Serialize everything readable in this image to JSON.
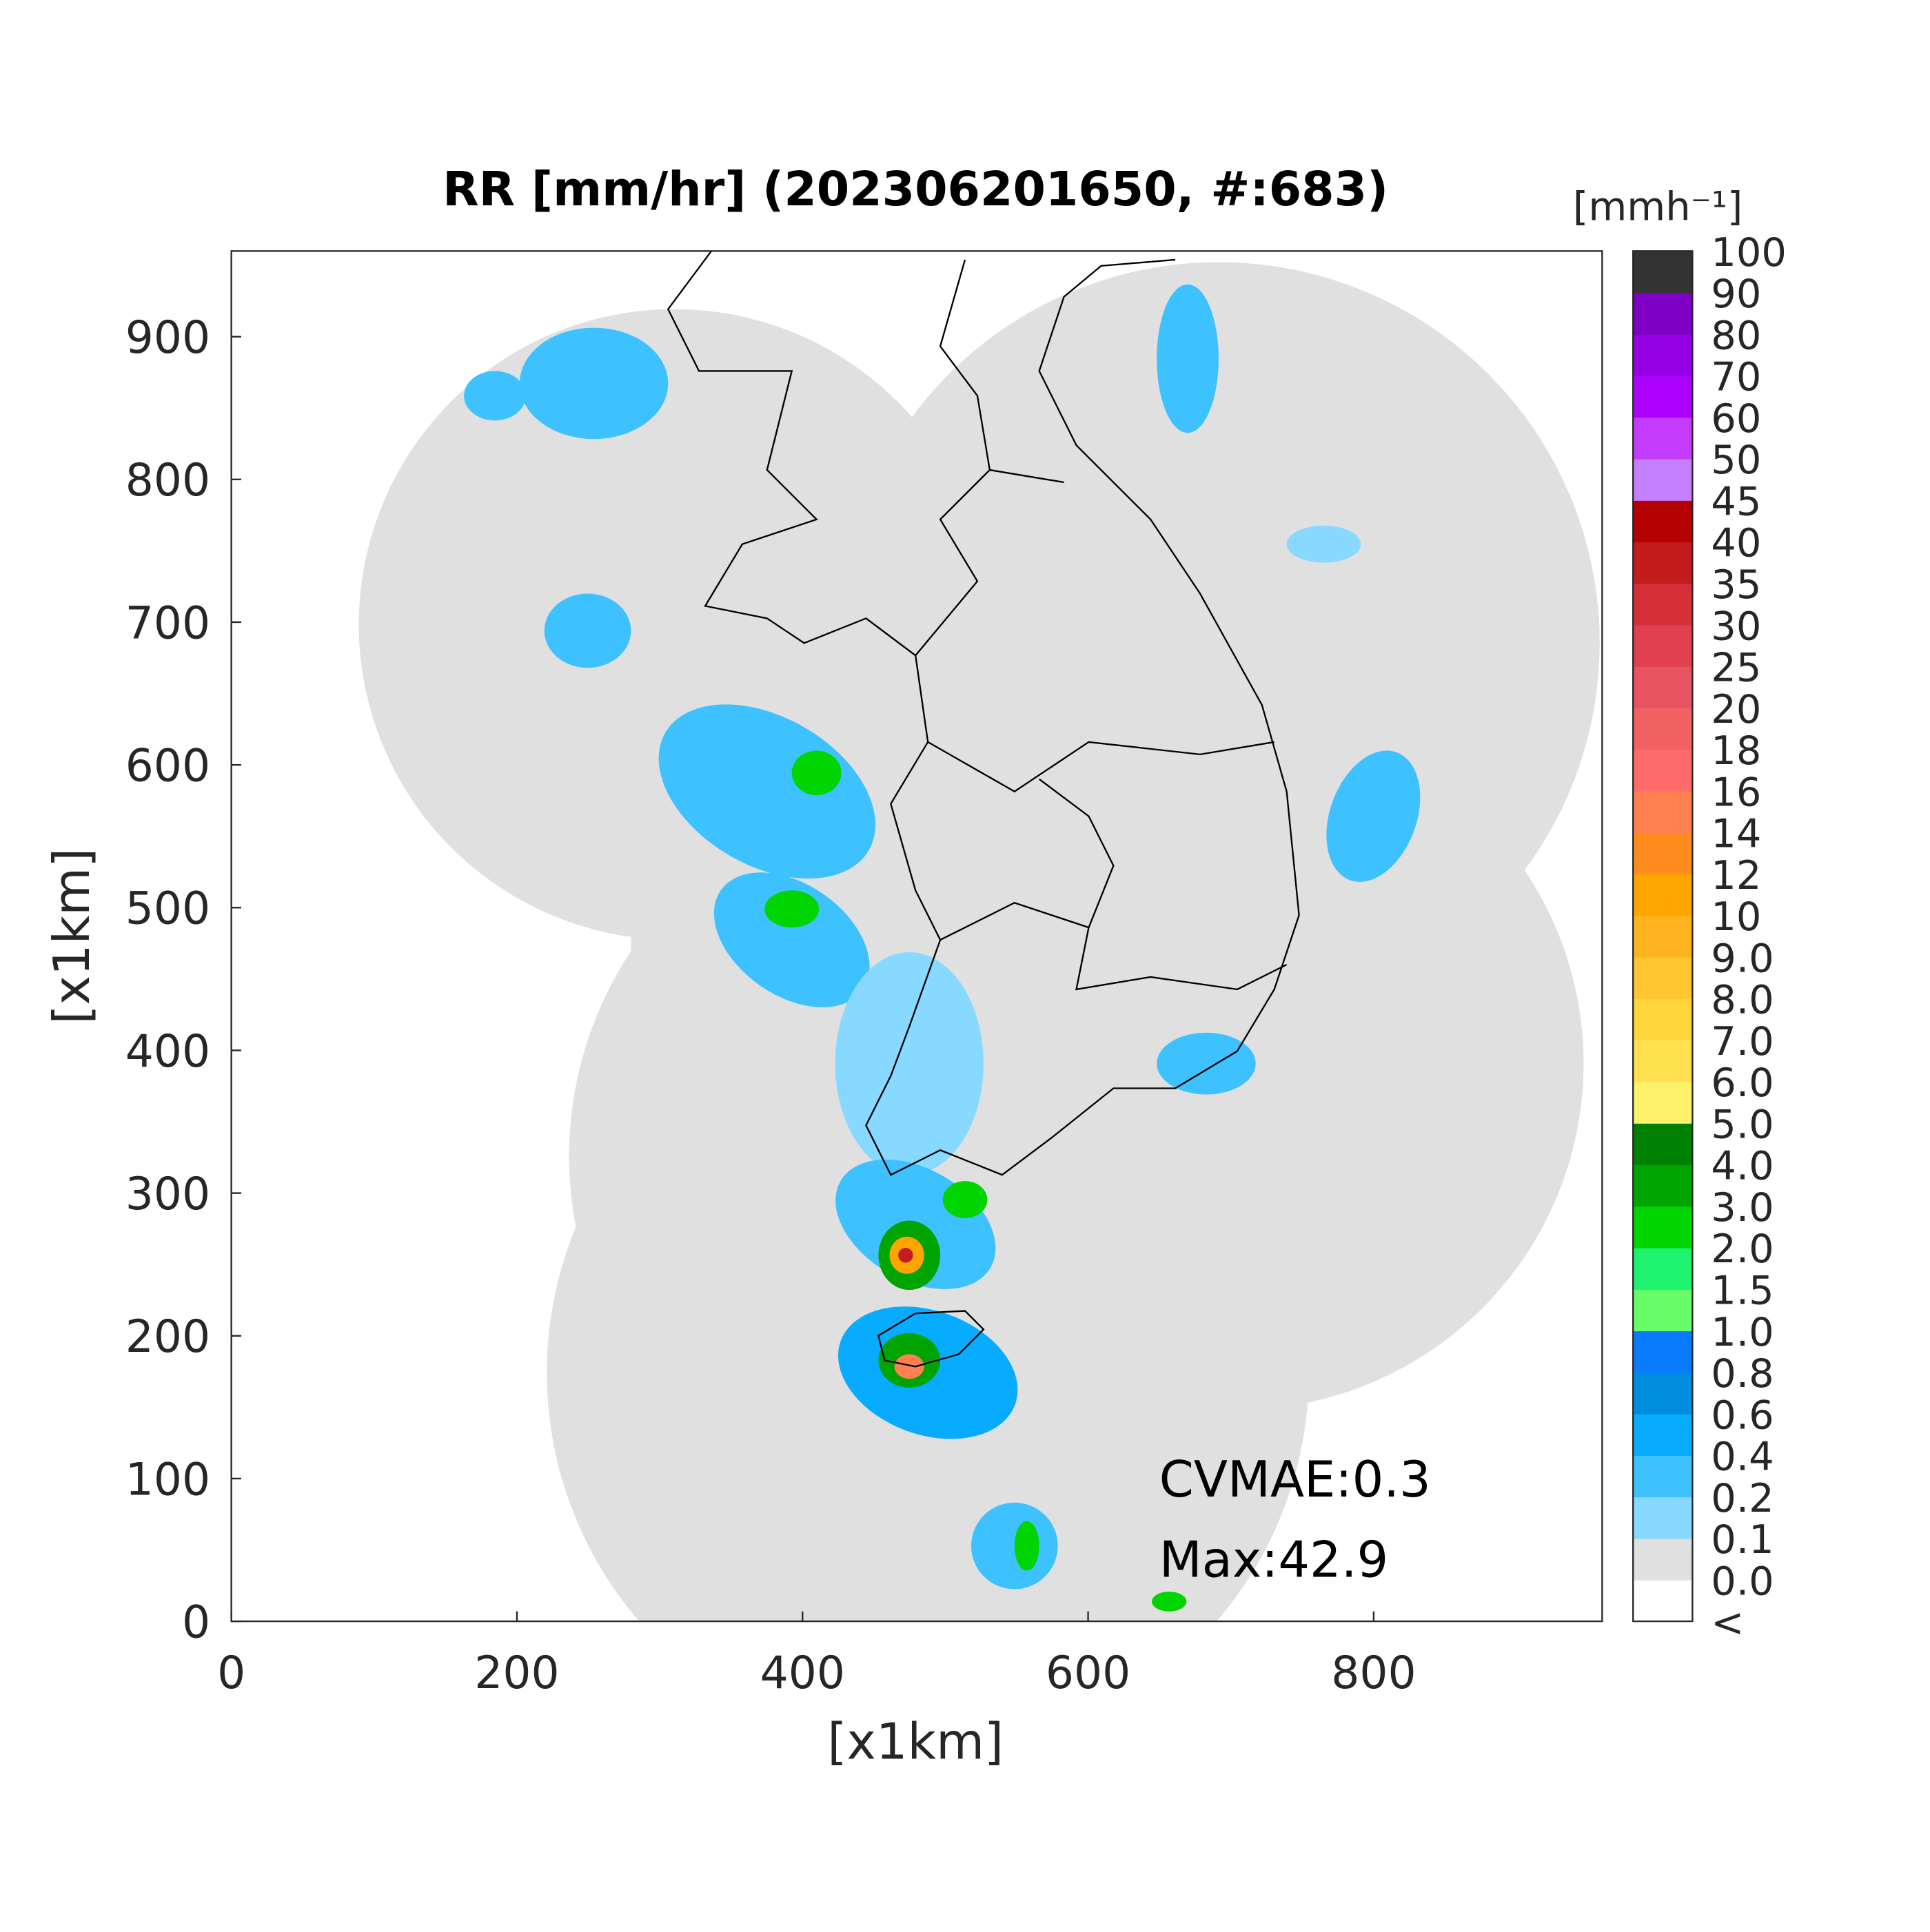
{
  "title": "RR [mm/hr] (202306201650, #:683)",
  "x_axis": {
    "label": "[x1km]",
    "lim": [
      0,
      960
    ],
    "ticks": [
      0,
      200,
      400,
      600,
      800
    ]
  },
  "y_axis": {
    "label": "[x1km]",
    "lim": [
      0,
      960
    ],
    "ticks": [
      0,
      100,
      200,
      300,
      400,
      500,
      600,
      700,
      800,
      900
    ]
  },
  "colorbar": {
    "unit": "[mmh⁻¹]",
    "labels": [
      "<",
      "0.0",
      "0.1",
      "0.2",
      "0.4",
      "0.6",
      "0.8",
      "1.0",
      "1.5",
      "2.0",
      "3.0",
      "4.0",
      "5.0",
      "6.0",
      "7.0",
      "8.0",
      "9.0",
      "10",
      "12",
      "14",
      "16",
      "18",
      "20",
      "25",
      "30",
      "35",
      "40",
      "45",
      "50",
      "60",
      "70",
      "80",
      "90",
      "100"
    ],
    "colors": [
      "#ffffff",
      "#e0e0e0",
      "#87d9ff",
      "#3ec1ff",
      "#07abff",
      "#008dde",
      "#0a7aff",
      "#69fc69",
      "#1ef26e",
      "#00d500",
      "#00a400",
      "#008000",
      "#fff26b",
      "#ffe14f",
      "#ffd53c",
      "#ffc62f",
      "#ffb41f",
      "#ffa500",
      "#ff8c1f",
      "#ff8050",
      "#ff6b6b",
      "#f26262",
      "#e85461",
      "#e04050",
      "#d53038",
      "#c41c1c",
      "#b40000",
      "#c580ff",
      "#c43dff",
      "#ae00ff",
      "#9500e6",
      "#7e00c4",
      "#333333"
    ]
  },
  "annotations": [
    "CVMAE:0.3",
    "Max:42.9"
  ]
}
